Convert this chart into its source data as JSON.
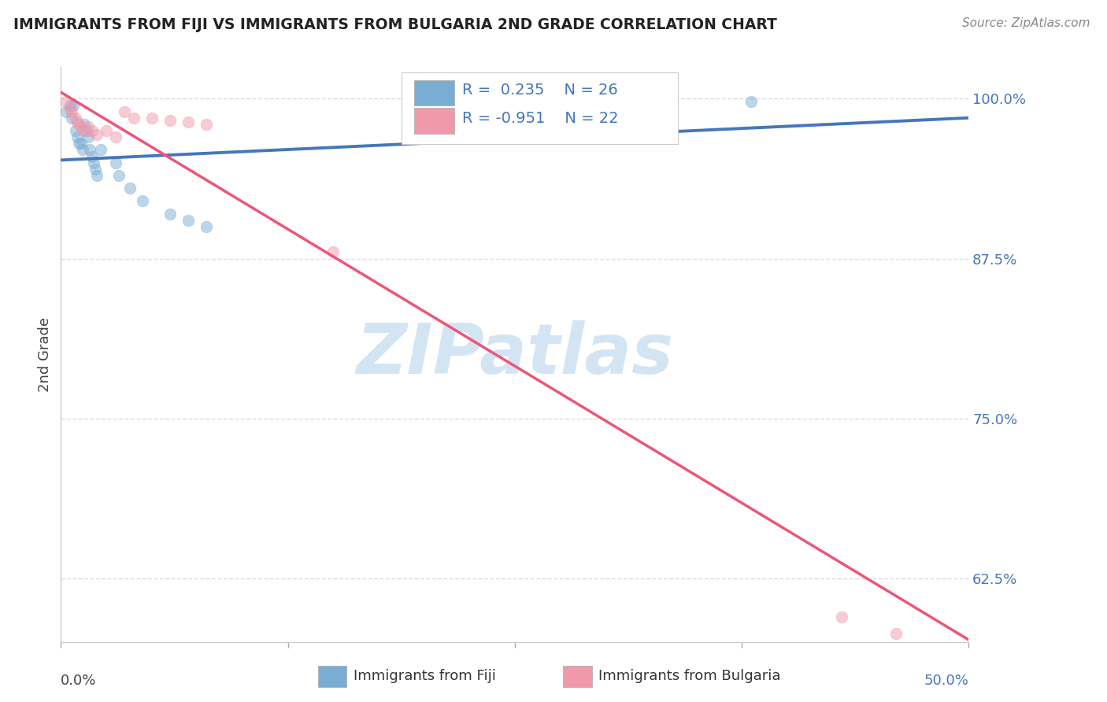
{
  "title": "IMMIGRANTS FROM FIJI VS IMMIGRANTS FROM BULGARIA 2ND GRADE CORRELATION CHART",
  "source": "Source: ZipAtlas.com",
  "ylabel": "2nd Grade",
  "y_ticks": [
    0.625,
    0.75,
    0.875,
    1.0
  ],
  "y_tick_labels": [
    "62.5%",
    "75.0%",
    "87.5%",
    "100.0%"
  ],
  "xlim": [
    0.0,
    0.5
  ],
  "ylim": [
    0.575,
    1.025
  ],
  "fiji_color": "#7AADD4",
  "fiji_color_line": "#4477BB",
  "fiji_color_dark": "#336699",
  "bulgaria_color": "#F099AA",
  "bulgaria_color_line": "#EE5577",
  "fiji_R": 0.235,
  "fiji_N": 26,
  "bulgaria_R": -0.951,
  "bulgaria_N": 22,
  "fiji_points": [
    [
      0.003,
      0.99
    ],
    [
      0.005,
      0.995
    ],
    [
      0.006,
      0.985
    ],
    [
      0.007,
      0.995
    ],
    [
      0.008,
      0.975
    ],
    [
      0.009,
      0.97
    ],
    [
      0.01,
      0.965
    ],
    [
      0.011,
      0.965
    ],
    [
      0.012,
      0.96
    ],
    [
      0.013,
      0.98
    ],
    [
      0.014,
      0.975
    ],
    [
      0.015,
      0.97
    ],
    [
      0.016,
      0.96
    ],
    [
      0.017,
      0.955
    ],
    [
      0.018,
      0.95
    ],
    [
      0.019,
      0.945
    ],
    [
      0.02,
      0.94
    ],
    [
      0.022,
      0.96
    ],
    [
      0.03,
      0.95
    ],
    [
      0.032,
      0.94
    ],
    [
      0.038,
      0.93
    ],
    [
      0.045,
      0.92
    ],
    [
      0.06,
      0.91
    ],
    [
      0.07,
      0.905
    ],
    [
      0.08,
      0.9
    ],
    [
      0.38,
      0.998
    ]
  ],
  "bulgaria_points": [
    [
      0.003,
      0.998
    ],
    [
      0.005,
      0.992
    ],
    [
      0.006,
      0.99
    ],
    [
      0.008,
      0.985
    ],
    [
      0.009,
      0.982
    ],
    [
      0.01,
      0.98
    ],
    [
      0.011,
      0.978
    ],
    [
      0.013,
      0.975
    ],
    [
      0.015,
      0.978
    ],
    [
      0.017,
      0.975
    ],
    [
      0.02,
      0.972
    ],
    [
      0.025,
      0.975
    ],
    [
      0.03,
      0.97
    ],
    [
      0.035,
      0.99
    ],
    [
      0.04,
      0.985
    ],
    [
      0.05,
      0.985
    ],
    [
      0.06,
      0.983
    ],
    [
      0.07,
      0.982
    ],
    [
      0.08,
      0.98
    ],
    [
      0.15,
      0.88
    ],
    [
      0.43,
      0.595
    ],
    [
      0.46,
      0.582
    ]
  ],
  "fiji_line_x": [
    0.0,
    0.5
  ],
  "fiji_line_y": [
    0.952,
    0.985
  ],
  "bulgaria_line_x": [
    0.0,
    0.5
  ],
  "bulgaria_line_y": [
    1.005,
    0.577
  ],
  "watermark": "ZIPatlas",
  "watermark_color": "#C8DFF0",
  "background_color": "#FFFFFF",
  "grid_color": "#DDDDDD",
  "legend_text_color": "#4477BB",
  "legend_fiji_text": "R =  0.235    N = 26",
  "legend_bulg_text": "R = -0.951    N = 22"
}
